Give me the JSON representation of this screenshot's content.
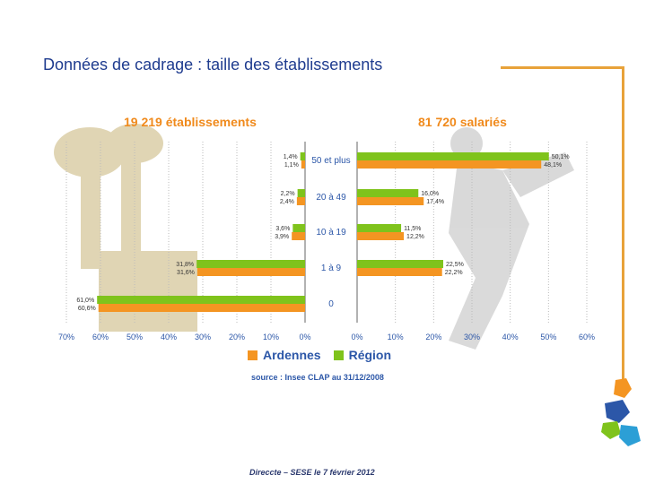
{
  "page": {
    "title": "Données de cadrage : taille  des établissements",
    "left_header": "19 219 établissements",
    "right_header": "81 720 salariés",
    "source": "source : Insee CLAP au 31/12/2008",
    "footer": "Direccte – SESE le 7 février 2012"
  },
  "colors": {
    "ardennes": "#f49522",
    "region": "#7fc31c",
    "accent": "#e8a23a"
  },
  "chart_data": [
    {
      "type": "bar",
      "orientation": "horizontal-mirrored",
      "title": "19 219 établissements",
      "categories": [
        "50 et plus",
        "20 à 49",
        "10 à 19",
        "1 à 9",
        "0"
      ],
      "series": [
        {
          "name": "Région",
          "values": [
            1.4,
            2.2,
            3.6,
            31.8,
            61.0
          ],
          "labels": [
            "1,4%",
            "2,2%",
            "3,6%",
            "31,8%",
            "61,0%"
          ]
        },
        {
          "name": "Ardennes",
          "values": [
            1.1,
            2.4,
            3.9,
            31.6,
            60.6
          ],
          "labels": [
            "1,1%",
            "2,4%",
            "3,9%",
            "31,6%",
            "60,6%"
          ]
        }
      ],
      "ticks": [
        "70%",
        "60%",
        "50%",
        "40%",
        "30%",
        "20%",
        "10%",
        "0%"
      ],
      "xlim": [
        0,
        70
      ]
    },
    {
      "type": "bar",
      "orientation": "horizontal",
      "title": "81 720 salariés",
      "categories": [
        "50 et plus",
        "20 à 49",
        "10 à 19",
        "1 à 9",
        "0"
      ],
      "series": [
        {
          "name": "Région",
          "values": [
            50.1,
            16.0,
            11.5,
            22.5,
            0
          ],
          "labels": [
            "50,1%",
            "16,0%",
            "11,5%",
            "22,5%",
            ""
          ]
        },
        {
          "name": "Ardennes",
          "values": [
            48.1,
            17.4,
            12.2,
            22.2,
            0
          ],
          "labels": [
            "48,1%",
            "17,4%",
            "12,2%",
            "22,2%",
            ""
          ]
        }
      ],
      "ticks": [
        "0%",
        "10%",
        "20%",
        "30%",
        "40%",
        "50%",
        "60%"
      ],
      "xlim": [
        0,
        60
      ]
    }
  ],
  "legend": {
    "ardennes": "Ardennes",
    "region": "Région"
  }
}
